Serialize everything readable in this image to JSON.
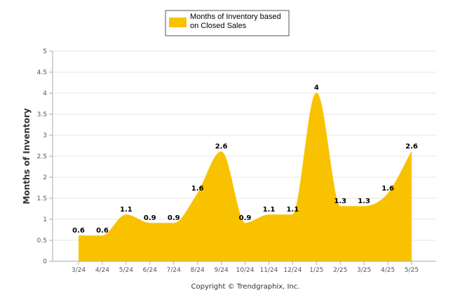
{
  "chart_data": {
    "type": "area",
    "title": "",
    "xlabel": "",
    "ylabel": "Months of Inventory",
    "categories": [
      "3/24",
      "4/24",
      "5/24",
      "6/24",
      "7/24",
      "8/24",
      "9/24",
      "10/24",
      "11/24",
      "12/24",
      "1/25",
      "2/25",
      "3/25",
      "4/25",
      "5/25"
    ],
    "series": [
      {
        "name": "Months of Inventory based on Closed Sales",
        "values": [
          0.6,
          0.6,
          1.1,
          0.9,
          0.9,
          1.6,
          2.6,
          0.9,
          1.1,
          1.1,
          4,
          1.3,
          1.3,
          1.6,
          2.6
        ],
        "labels": [
          "0.6",
          "0.6",
          "1.1",
          "0.9",
          "0.9",
          "1.6",
          "2.6",
          "0.9",
          "1.1",
          "1.1",
          "4",
          "1.3",
          "1.3",
          "1.6",
          "2.6"
        ]
      }
    ],
    "ylim": [
      0,
      5
    ],
    "y_ticks": [
      "0",
      "0.5",
      "1",
      "1.5",
      "2",
      "2.5",
      "3",
      "3.5",
      "4",
      "4.5",
      "5"
    ],
    "grid": true,
    "legend_position": "top-center",
    "series_color": "#F9C200",
    "smooth": true
  },
  "legend": {
    "line1": "Months of Inventory based",
    "line2": "on Closed Sales"
  },
  "copyright": "Copyright © Trendgraphix, Inc."
}
